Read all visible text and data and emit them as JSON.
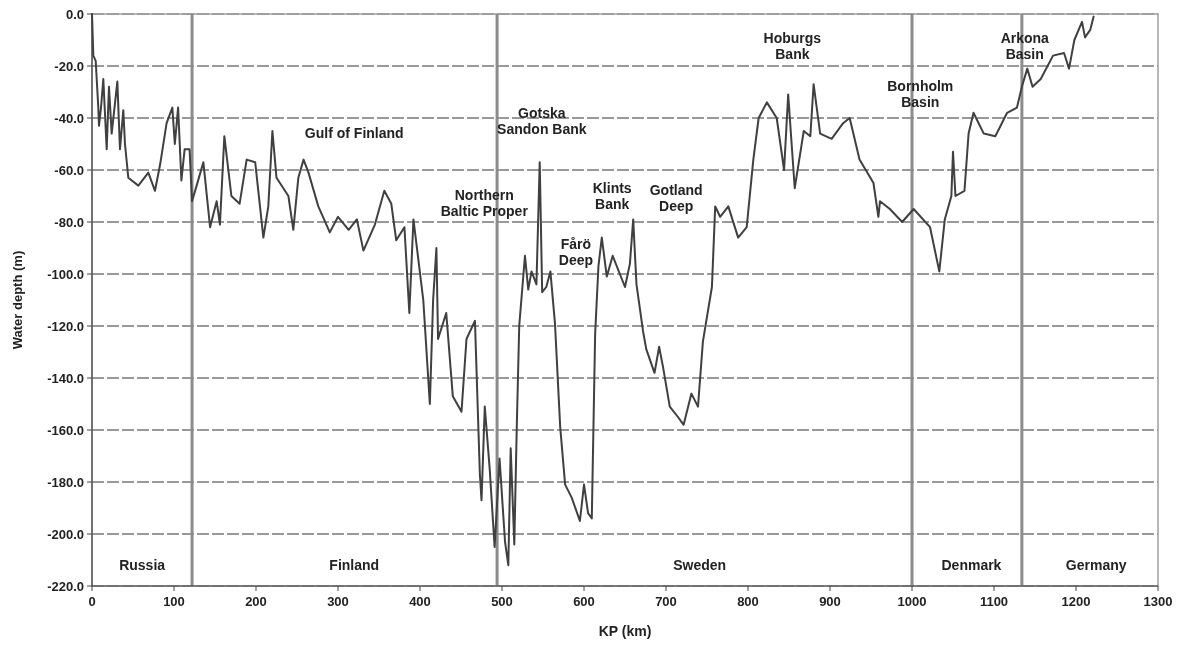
{
  "chart_data": {
    "type": "line",
    "xlabel": "KP (km)",
    "ylabel": "Water depth (m)",
    "xlim": [
      0,
      1300
    ],
    "xticks": [
      0,
      100,
      200,
      300,
      400,
      500,
      600,
      700,
      800,
      900,
      1000,
      1100,
      1200,
      1300
    ],
    "ylim": [
      -220,
      0
    ],
    "yticks": [
      {
        "value": -220,
        "label": "-220.0"
      },
      {
        "value": -200,
        "label": "-200.0"
      },
      {
        "value": -180,
        "label": "-180.0"
      },
      {
        "value": -160,
        "label": "-160.0"
      },
      {
        "value": -140,
        "label": "-140.0"
      },
      {
        "value": -120,
        "label": "-120.0"
      },
      {
        "value": -100,
        "label": "-100.0"
      },
      {
        "value": -80,
        "label": "-80.0"
      },
      {
        "value": -60,
        "label": "-60.0"
      },
      {
        "value": -40,
        "label": "-40.0"
      },
      {
        "value": -20,
        "label": "-20.0"
      },
      {
        "value": 0,
        "label": "0.0"
      }
    ],
    "grid": "y",
    "marker": "none",
    "line_style": "solid",
    "ref_lines": [
      {
        "axis": "x",
        "value": 122,
        "color": "#8c8c8c"
      },
      {
        "axis": "x",
        "value": 494,
        "color": "#8c8c8c"
      },
      {
        "axis": "x",
        "value": 1000,
        "color": "#8c8c8c"
      },
      {
        "axis": "x",
        "value": 1134,
        "color": "#8c8c8c"
      }
    ],
    "annotations": [
      "Russia",
      "Finland",
      "Sweden",
      "Denmark",
      "Germany",
      "Gulf of Finland",
      "Gotska\nSandon Bank",
      "Northern\nBaltic Proper",
      "Fårö\nDeep",
      "Klints\nBank",
      "Gotland\nDeep",
      "Hoburgs\nBank",
      "Bornholm\nBasin",
      "Arkona\nBasin"
    ],
    "series": [
      {
        "color": "#404040",
        "x": [
          0,
          1.6,
          4.5,
          7.7,
          8.5,
          11,
          13.8,
          17.9,
          20.7,
          24,
          30.9,
          34.1,
          38.2,
          40.2,
          44.3,
          56.5,
          68.7,
          76.8,
          83,
          91,
          98,
          101,
          105,
          109,
          113,
          119,
          122,
          127.6,
          135.8,
          144,
          152,
          156,
          161.4,
          170,
          180,
          188.6,
          199,
          209,
          215,
          220,
          225,
          239.5,
          245.5,
          251.6,
          258,
          264,
          276,
          290,
          300,
          313,
          323,
          331,
          345,
          356.5,
          365,
          371,
          381,
          387,
          392,
          404,
          412,
          416,
          420,
          422,
          432,
          440,
          450.6,
          456.7,
          467,
          473,
          475,
          479,
          485,
          491,
          497,
          503.7,
          507.7,
          510.6,
          515,
          518,
          521,
          528,
          532,
          536,
          542,
          546,
          549,
          554,
          559,
          564.6,
          571,
          577,
          585,
          595,
          600,
          605,
          609.5,
          613.6,
          617.6,
          621.7,
          627.8,
          635,
          650,
          656,
          660,
          664,
          672,
          676,
          686,
          691.6,
          696.5,
          704.6,
          714.6,
          721.5,
          731,
          739,
          745,
          756,
          760,
          766,
          776,
          788,
          798.4,
          806.5,
          813,
          823,
          835,
          844,
          849,
          857,
          868,
          876,
          880,
          888,
          902,
          916,
          924,
          936,
          953,
          959,
          961,
          973,
          988,
          1002,
          1022,
          1033.3,
          1040,
          1048,
          1050,
          1053,
          1064,
          1069,
          1075,
          1087.5,
          1101.6,
          1116,
          1128,
          1134,
          1140.6,
          1147,
          1157,
          1172,
          1185.4,
          1191.5,
          1198,
          1207.3,
          1211,
          1217.5,
          1221.5
        ],
        "values": [
          0,
          -16,
          -18,
          -36,
          -43,
          -36,
          -25,
          -52,
          -28,
          -46,
          -26,
          -52,
          -37,
          -50,
          -63,
          -66,
          -61,
          -68,
          -58,
          -42,
          -36,
          -50,
          -36,
          -64,
          -52,
          -52,
          -72,
          -66,
          -57,
          -82,
          -72,
          -81,
          -47,
          -70,
          -73,
          -56,
          -57,
          -86,
          -74,
          -45,
          -63,
          -70,
          -83,
          -63,
          -56,
          -61,
          -74,
          -84,
          -78,
          -83,
          -79,
          -91,
          -81,
          -68,
          -73,
          -87,
          -82,
          -115,
          -79,
          -110,
          -150,
          -110,
          -90,
          -125,
          -115,
          -147,
          -153,
          -125,
          -118,
          -177,
          -187,
          -151,
          -175,
          -205,
          -171,
          -203,
          -212,
          -167,
          -204,
          -159,
          -120,
          -93,
          -106,
          -99,
          -104,
          -57,
          -107,
          -105,
          -99,
          -119,
          -159,
          -181,
          -186,
          -195,
          -181,
          -192,
          -194,
          -123,
          -97,
          -86,
          -101,
          -93,
          -105,
          -96,
          -79,
          -104,
          -122,
          -129,
          -138,
          -128,
          -136,
          -151,
          -155,
          -158,
          -146,
          -151,
          -126,
          -105,
          -74,
          -78,
          -74,
          -86,
          -82,
          -56,
          -40,
          -34,
          -40,
          -60,
          -31,
          -67,
          -45,
          -47,
          -27,
          -46,
          -48,
          -42,
          -40,
          -56,
          -65,
          -78,
          -72,
          -75,
          -80,
          -75,
          -82,
          -99,
          -79,
          -70,
          -53,
          -70,
          -68,
          -46,
          -38,
          -46,
          -47,
          -38,
          -36,
          -28,
          -21,
          -28,
          -25,
          -16,
          -15,
          -21,
          -10,
          -3,
          -9,
          -6,
          -1
        ]
      }
    ]
  }
}
